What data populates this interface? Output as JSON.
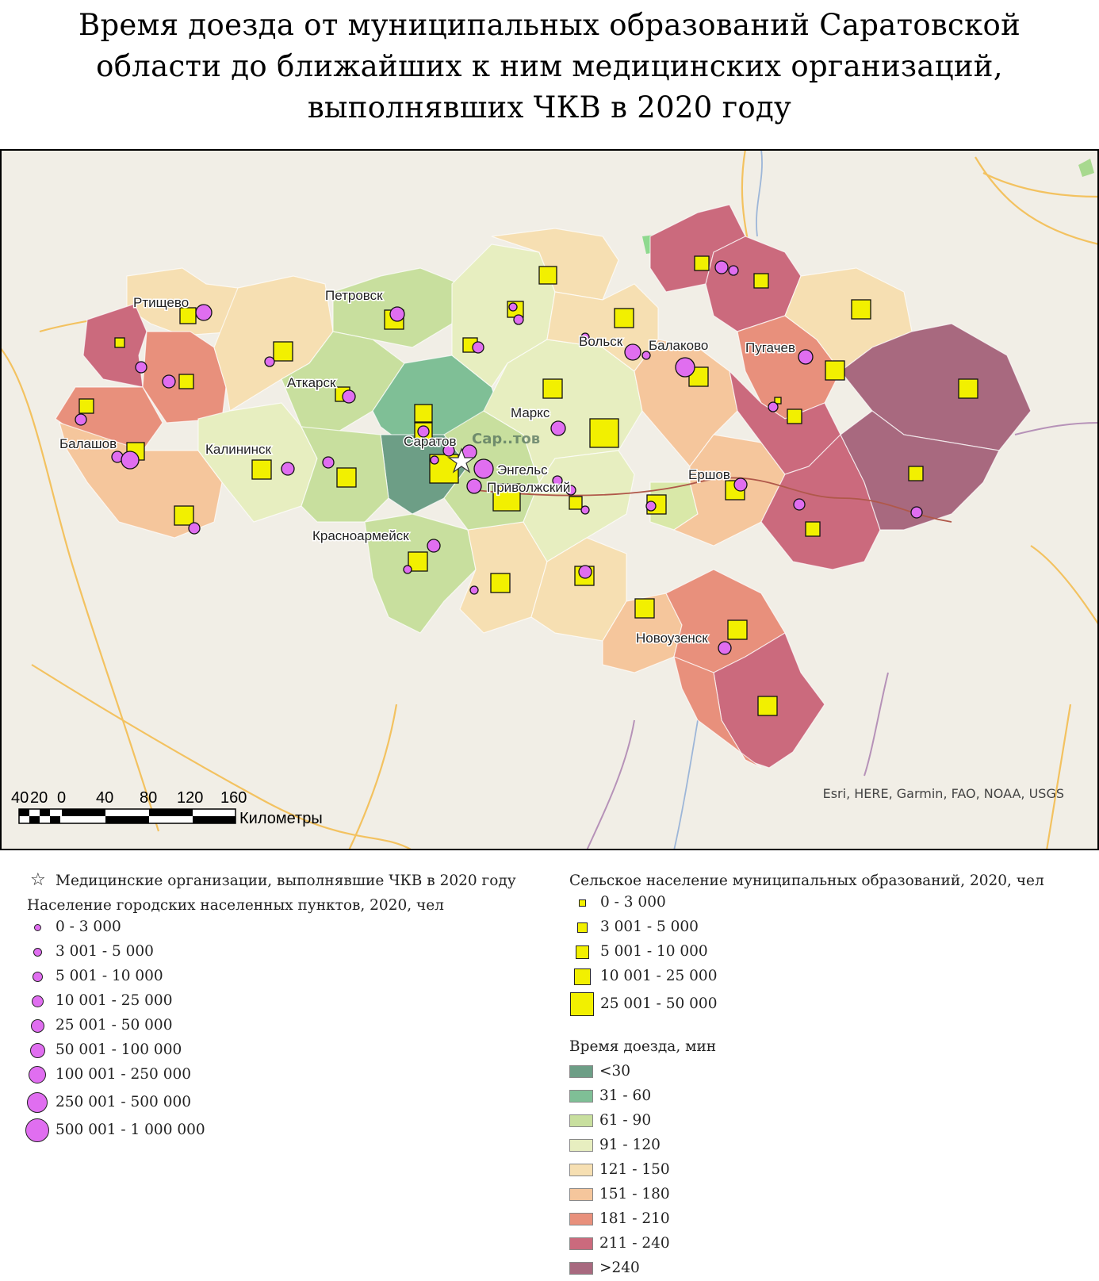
{
  "title": {
    "line1": "Время доезда от муниципальных образований Саратовской",
    "line2": "области до ближайших к ним медицинских организаций,",
    "line3": "выполнявших ЧКВ в 2020 году"
  },
  "map": {
    "attribution": "Esri, HERE, Garmin, FAO, NOAA, USGS",
    "scale_ticks": [
      "40",
      "20",
      "0",
      "40",
      "80",
      "120",
      "160"
    ],
    "scale_unit": "Километры",
    "city_labels": [
      "Ртищево",
      "Петровск",
      "Аткарск",
      "Балашов",
      "Калининск",
      "Саратов",
      "Энгельс",
      "Приволжский",
      "Маркс",
      "Вольск",
      "Балаково",
      "Пугачев",
      "Ершов",
      "Красноармейск",
      "Новоузенск"
    ],
    "basemap_label": "Сар..тов",
    "colors": {
      "t1": "#6d9e86",
      "t2": "#7fbf96",
      "t3": "#c8df9e",
      "t4": "#e7eec0",
      "t5": "#f6dfb2",
      "t6": "#f5c69c",
      "t7": "#e8907c",
      "t8": "#cb6a7d",
      "t9": "#a8697f",
      "circle": "#e06ef0",
      "square": "#f2f000",
      "basemap": "#f1eee6",
      "road": "#f3c260"
    }
  },
  "legend": {
    "pci_label": "Медицинские организации, выполнявшие ЧКВ в 2020 году",
    "urban_title": "Население городских населенных пунктов, 2020, чел",
    "urban_classes": [
      "0 - 3 000",
      "3 001 - 5 000",
      "5 001 - 10 000",
      "10 001 - 25 000",
      "25 001 - 50 000",
      "50 001 - 100 000",
      "100 001 - 250 000",
      "250 001 - 500 000",
      "500 001 - 1 000 000"
    ],
    "rural_title": "Сельское население муниципальных образований, 2020, чел",
    "rural_classes": [
      "0 - 3 000",
      "3 001 - 5 000",
      "5 001 - 10 000",
      "10 001 - 25 000",
      "25 001 - 50 000"
    ],
    "time_title": "Время доезда, мин",
    "time_classes": [
      "<30",
      "31 - 60",
      "61 - 90",
      "91 - 120",
      "121 - 150",
      "151 - 180",
      "181 - 210",
      "211 - 240",
      ">240"
    ]
  }
}
